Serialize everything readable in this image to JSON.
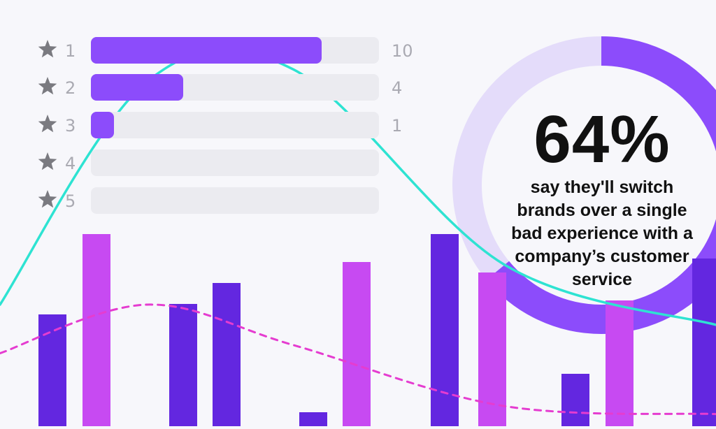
{
  "colors": {
    "purple": "#8c4cfb",
    "track": "#ebebf0",
    "donut_fill": "#8c4cfb",
    "donut_track": "#e4dcfa",
    "bar_dark": "#6327e0",
    "bar_light": "#c74af2",
    "line_solid": "#2ee3d2",
    "line_dashed": "#e53cd0",
    "star": "#7a7a80"
  },
  "ratings": {
    "max": 10,
    "rows": [
      {
        "label": "1",
        "count": "10",
        "value": 10
      },
      {
        "label": "2",
        "count": "4",
        "value": 4
      },
      {
        "label": "3",
        "count": "1",
        "value": 1
      },
      {
        "label": "4",
        "count": "",
        "value": 0
      },
      {
        "label": "5",
        "count": "",
        "value": 0
      }
    ]
  },
  "callout": {
    "value": "64%",
    "caption": "say they'll switch brands over a single bad experience with a company’s customer service"
  },
  "chart_data": [
    {
      "type": "pie",
      "values": [
        64,
        36
      ],
      "labels": [
        "64%",
        ""
      ]
    },
    {
      "type": "bar",
      "values": [
        0.32,
        0.55,
        0.35,
        0.41,
        0.04,
        0.47,
        0.55,
        0.44,
        0.15,
        0.36,
        0.48
      ],
      "ylim": [
        0,
        1
      ],
      "grid": false
    },
    {
      "type": "line",
      "series": [
        {
          "style": "solid",
          "values": [
            0.3,
            0.85,
            0.88,
            0.4,
            0.25
          ]
        },
        {
          "style": "dashed",
          "values": [
            0.18,
            0.3,
            0.2,
            0.05,
            0.03
          ]
        }
      ]
    }
  ]
}
